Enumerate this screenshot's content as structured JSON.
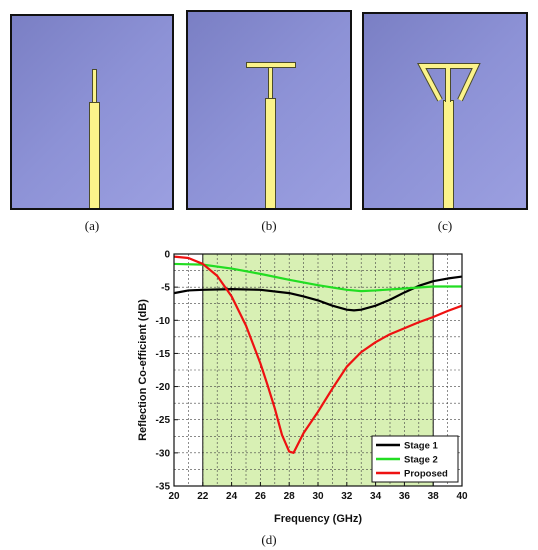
{
  "captions": {
    "a": "(a)",
    "b": "(b)",
    "c": "(c)",
    "d": "(d)"
  },
  "colors": {
    "substrate": "#8a8fd2",
    "metal": "#fbf38a",
    "band": "#d8f0b4"
  },
  "chart_data": {
    "type": "line",
    "xlabel": "Frequency (GHz)",
    "ylabel": "Reflection Co-efficient (dB)",
    "xlim": [
      20,
      40
    ],
    "ylim": [
      -35,
      0
    ],
    "xticks": [
      20,
      22,
      24,
      26,
      28,
      30,
      32,
      34,
      36,
      38,
      40
    ],
    "yticks": [
      0,
      -5,
      -10,
      -15,
      -20,
      -25,
      -30,
      -35
    ],
    "grid": true,
    "legend": "bottom-right",
    "highlight_band": [
      22,
      38
    ],
    "series": [
      {
        "name": "Stage 1",
        "color": "#000000",
        "x": [
          20,
          21,
          22,
          24,
          26,
          28,
          29,
          30,
          31,
          32,
          32.5,
          33,
          34,
          35,
          36,
          37,
          38,
          39,
          40
        ],
        "y": [
          -5.9,
          -5.5,
          -5.4,
          -5.3,
          -5.4,
          -5.9,
          -6.4,
          -7.0,
          -7.8,
          -8.4,
          -8.5,
          -8.4,
          -7.8,
          -6.9,
          -5.8,
          -4.8,
          -4.1,
          -3.7,
          -3.4
        ]
      },
      {
        "name": "Stage 2",
        "color": "#22dd22",
        "x": [
          20,
          22,
          24,
          26,
          28,
          30,
          32,
          33,
          34,
          36,
          38,
          40
        ],
        "y": [
          -1.5,
          -1.6,
          -2.2,
          -3.0,
          -3.9,
          -4.7,
          -5.4,
          -5.6,
          -5.5,
          -5.2,
          -4.9,
          -4.9
        ]
      },
      {
        "name": "Proposed",
        "color": "#ee1111",
        "x": [
          20,
          21,
          22,
          23,
          24,
          25,
          26,
          26.5,
          27,
          27.5,
          28,
          28.3,
          29,
          30,
          31,
          32,
          33,
          34,
          35,
          36,
          37,
          38,
          39,
          40
        ],
        "y": [
          -0.4,
          -0.6,
          -1.5,
          -3.3,
          -6.4,
          -10.8,
          -16.5,
          -19.8,
          -23.3,
          -27.3,
          -29.8,
          -30.0,
          -27.0,
          -23.8,
          -20.3,
          -17.0,
          -14.8,
          -13.3,
          -12.1,
          -11.2,
          -10.3,
          -9.5,
          -8.6,
          -7.8
        ]
      }
    ]
  }
}
